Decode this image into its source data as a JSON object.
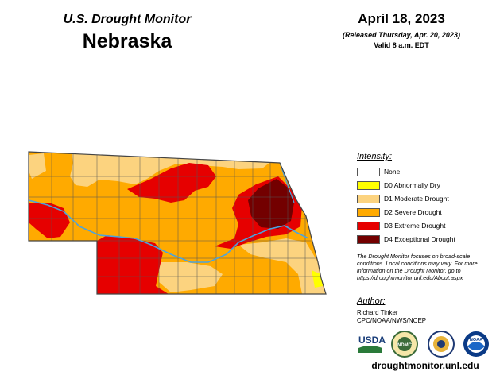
{
  "header": {
    "program": "U.S. Drought Monitor",
    "state": "Nebraska",
    "date": "April 18, 2023",
    "released": "(Released Thursday, Apr. 20, 2023)",
    "valid": "Valid 8 a.m. EDT"
  },
  "legend": {
    "title": "Intensity:",
    "items": [
      {
        "label": "None",
        "color": "#ffffff"
      },
      {
        "label": "D0 Abnormally Dry",
        "color": "#ffff00"
      },
      {
        "label": "D1 Moderate Drought",
        "color": "#fcd37f"
      },
      {
        "label": "D2 Severe Drought",
        "color": "#ffaa00"
      },
      {
        "label": "D3 Extreme Drought",
        "color": "#e60000"
      },
      {
        "label": "D4 Exceptional Drought",
        "color": "#730000"
      }
    ]
  },
  "note": "The Drought Monitor focuses on broad-scale conditions. Local conditions may vary. For more information on the Drought Monitor, go to https://droughtmonitor.unl.edu/About.aspx",
  "author": {
    "title": "Author:",
    "name": "Richard Tinker",
    "org": "CPC/NOAA/NWS/NCEP"
  },
  "logos": [
    {
      "name": "usda-logo",
      "text": "USDA"
    },
    {
      "name": "ndmc-logo",
      "text": "NDMC"
    },
    {
      "name": "doc-seal-logo",
      "text": ""
    },
    {
      "name": "noaa-logo",
      "text": "NOAA"
    }
  ],
  "footer": {
    "url": "droughtmonitor.unl.edu"
  },
  "colors": {
    "border": "#555555",
    "river": "#4aa3df"
  }
}
